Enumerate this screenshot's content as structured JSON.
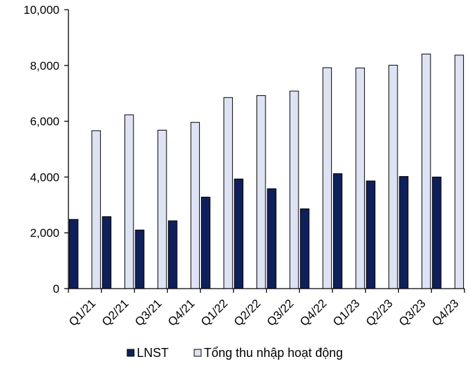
{
  "chart_data": {
    "type": "bar",
    "categories": [
      "Q1/21",
      "Q2/21",
      "Q3/21",
      "Q4/21",
      "Q1/22",
      "Q2/22",
      "Q3/22",
      "Q4/22",
      "Q1/23",
      "Q2/23",
      "Q3/23",
      "Q4/23"
    ],
    "series": [
      {
        "name": "LNST",
        "color": "#0d1f5c",
        "values": [
          2480,
          2580,
          2100,
          2430,
          3280,
          3930,
          3580,
          2860,
          4120,
          3860,
          4020,
          4000
        ]
      },
      {
        "name": "Tổng thu nhập hoạt động",
        "color": "#dde3f3",
        "values": [
          5660,
          6230,
          5680,
          5960,
          6850,
          6920,
          7080,
          7920,
          7910,
          8010,
          8410,
          8370
        ]
      }
    ],
    "y_ticks": [
      "0",
      "2,000",
      "4,000",
      "6,000",
      "8,000",
      "10,000"
    ],
    "ylim": [
      0,
      10000
    ],
    "grid": false,
    "legend_position": "bottom",
    "title": "",
    "xlabel": "",
    "ylabel": ""
  }
}
